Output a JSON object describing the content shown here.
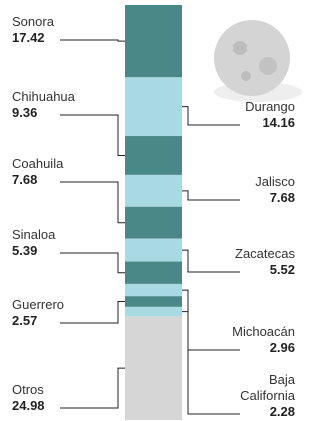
{
  "chart_data": {
    "type": "bar",
    "categories": [
      "Sonora",
      "Durango",
      "Chihuahua",
      "Jalisco",
      "Coahuila",
      "Zacatecas",
      "Sinaloa",
      "Michoacán",
      "Guerrero",
      "Baja California",
      "Otros"
    ],
    "values": [
      17.42,
      14.16,
      9.36,
      7.68,
      7.68,
      5.52,
      5.39,
      2.96,
      2.57,
      2.28,
      24.98
    ],
    "colors": [
      "#4a8787",
      "#a9d9e2",
      "#4a8787",
      "#a9d9e2",
      "#4a8787",
      "#a9d9e2",
      "#4a8787",
      "#a9d9e2",
      "#4a8787",
      "#a9d9e2",
      "#d6d6d6"
    ]
  }
}
